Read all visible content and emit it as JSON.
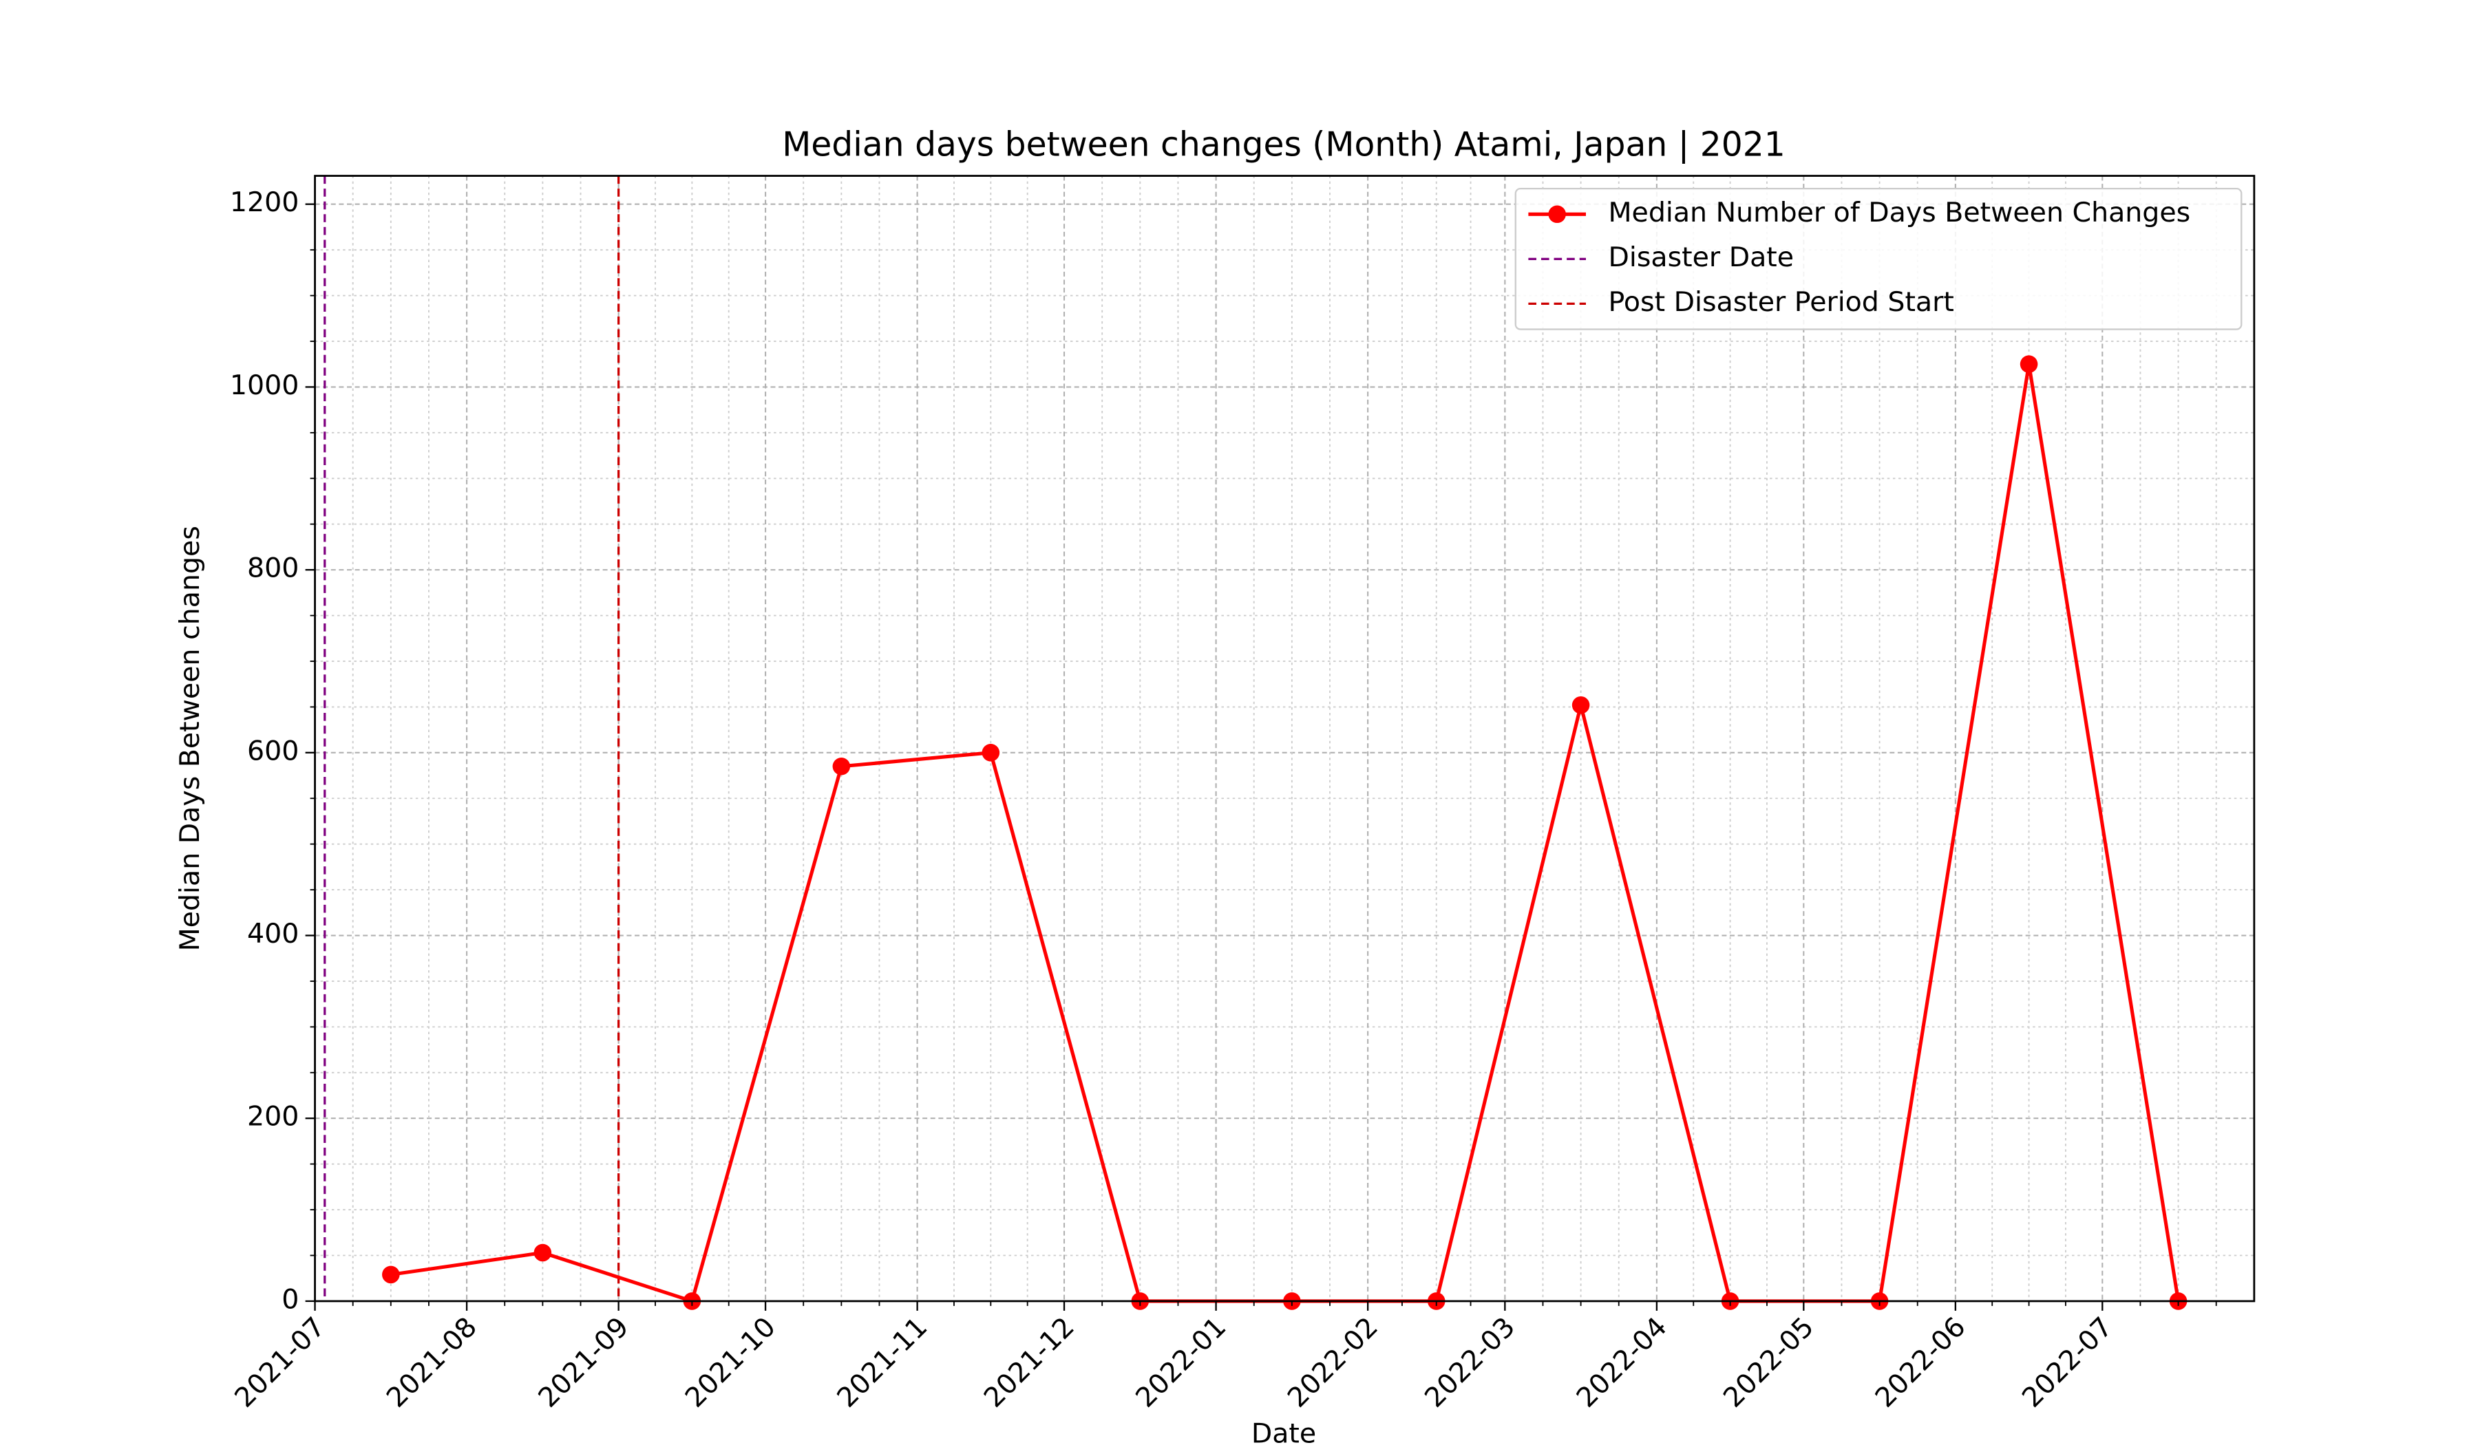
{
  "chart_data": {
    "type": "line",
    "title": "Median days between changes (Month) Atami, Japan | 2021",
    "x_label": "Date",
    "y_label": "Median Days Between changes",
    "x": [
      "2021-07",
      "2021-08",
      "2021-09",
      "2021-10",
      "2021-11",
      "2021-12",
      "2022-01",
      "2022-02",
      "2022-03",
      "2022-04",
      "2022-05",
      "2022-06",
      "2022-07"
    ],
    "series": [
      {
        "name": "Median Number of Days Between Changes",
        "color": "#ff0000",
        "values": [
          29,
          53,
          0,
          585,
          600,
          0,
          0,
          0,
          652,
          0,
          0,
          1025,
          0
        ]
      }
    ],
    "vlines": [
      {
        "name": "Disaster Date",
        "x": "2021-07-03",
        "color": "#800080"
      },
      {
        "name": "Post Disaster Period Start",
        "x": "2021-09-01",
        "color": "#cc0000"
      }
    ],
    "xlim": [
      "2021-07",
      "2022-08"
    ],
    "xticks": [
      "2021-07",
      "2021-08",
      "2021-09",
      "2021-10",
      "2021-11",
      "2021-12",
      "2022-01",
      "2022-02",
      "2022-03",
      "2022-04",
      "2022-05",
      "2022-06",
      "2022-07"
    ],
    "ylim": [
      0,
      1231
    ],
    "yticks": [
      0,
      200,
      400,
      600,
      800,
      1000,
      1200
    ],
    "grid": true,
    "legend": "upper right"
  }
}
